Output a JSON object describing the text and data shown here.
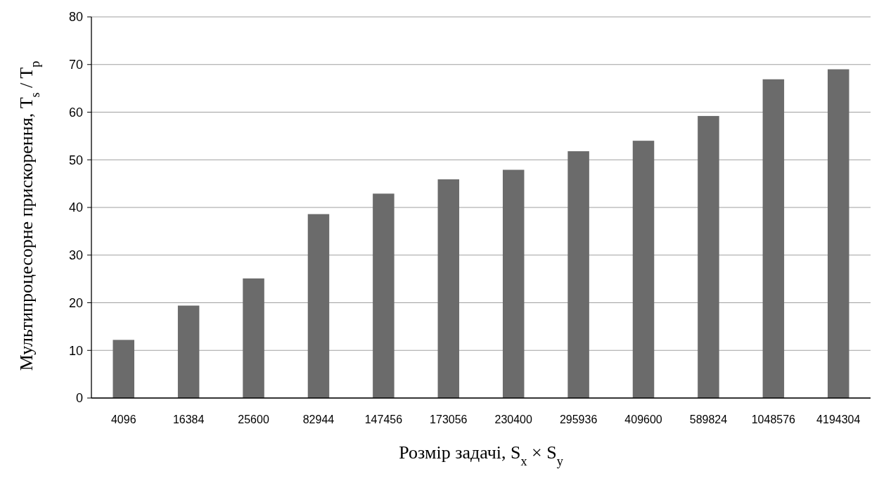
{
  "chart_data": {
    "type": "bar",
    "xlabel": "Розмір задачі, S$_{x}$ × S$_{y}$",
    "ylabel": "Мультипроцесорне прискорення, T$_{s}$ / T$_{p}$",
    "categories": [
      "4096",
      "16384",
      "25600",
      "82944",
      "147456",
      "173056",
      "230400",
      "295936",
      "409600",
      "589824",
      "1048576",
      "4194304"
    ],
    "values": [
      12.2,
      19.4,
      25.1,
      38.6,
      42.9,
      45.9,
      47.9,
      51.8,
      54.0,
      59.2,
      66.9,
      69.0
    ],
    "color": "#6b6b6b",
    "ylim": [
      0,
      80
    ],
    "yticks": [
      0,
      10,
      20,
      30,
      40,
      50,
      60,
      70,
      80
    ],
    "grid": "y"
  }
}
